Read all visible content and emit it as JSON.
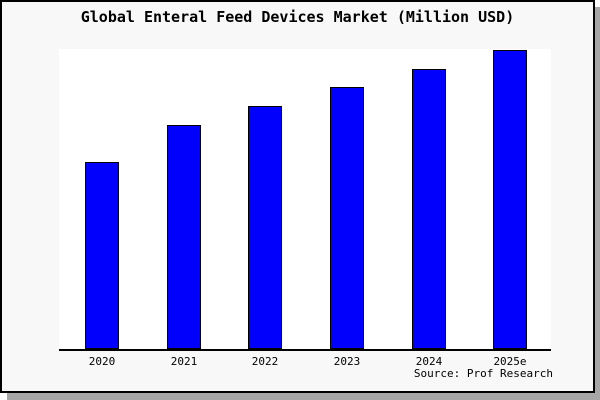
{
  "title": "Global Enteral Feed Devices Market (Million USD)",
  "source": "Source: Prof Research",
  "colors": {
    "figure_background": "#f8f8f8",
    "plot_background": "#ffffff",
    "bar_fill": "#0000fc",
    "bar_border": "#000000",
    "axis_line": "#000000",
    "figure_border": "#000000",
    "shadow": "#a6a6a6"
  },
  "chart_data": {
    "type": "bar",
    "title": "Global Enteral Feed Devices Market (Million USD)",
    "categories": [
      "2020",
      "2021",
      "2022",
      "2023",
      "2024",
      "2025e"
    ],
    "values": [
      62.5,
      74.9,
      81.3,
      87.6,
      93.6,
      100.0
    ],
    "values_note": "No y-axis ticks or data labels are visible in the image; values are relative bar heights normalized to 2025e = 100.",
    "xlabel": "",
    "ylabel": "",
    "ylim": [
      0,
      100.3
    ],
    "grid": false,
    "legend": null,
    "y_axis_visible": false,
    "annotations": [
      "Source: Prof Research"
    ]
  }
}
